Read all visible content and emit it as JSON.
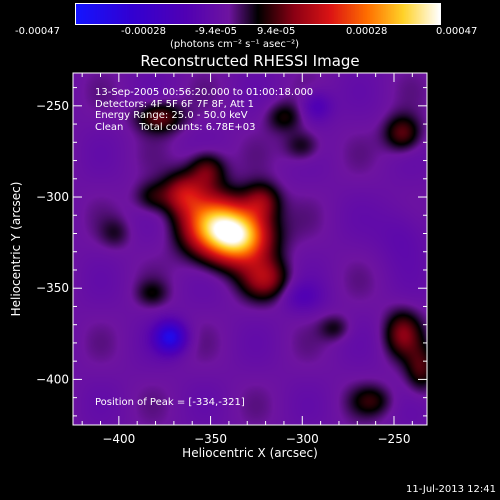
{
  "colorbar": {
    "ticks": [
      "-0.00047",
      "-0.00028",
      "-9.4e-05",
      "9.4e-05",
      "0.00028",
      "0.00047"
    ],
    "unit_label": "(photons cm⁻² s⁻¹ asec⁻²)",
    "range": [
      -0.00047,
      0.00047
    ]
  },
  "annotations": {
    "time_range": "13-Sep-2005 00:56:20.000 to 01:00:18.000",
    "detectors": "Detectors: 4F 5F 6F 7F 8F, Att 1",
    "energy": "Energy Range: 25.0 - 50.0 keV",
    "clean_total": "Clean     Total counts: 6.78E+03",
    "peak": "Position of Peak = [-334,-321]"
  },
  "footer": {
    "timestamp": "11-Jul-2013 12:41"
  },
  "chart_data": {
    "type": "heatmap",
    "title": "Reconstructed RHESSI Image",
    "xlabel": "Heliocentric X (arcsec)",
    "ylabel": "Heliocentric Y (arcsec)",
    "xlim": [
      -425,
      -232
    ],
    "ylim": [
      -425,
      -232
    ],
    "xticks": [
      -400,
      -350,
      -300,
      -250
    ],
    "yticks": [
      -400,
      -350,
      -300,
      -250
    ],
    "xtick_labels": [
      "−400",
      "−350",
      "−300",
      "−250"
    ],
    "ytick_labels": [
      "−400",
      "−350",
      "−300",
      "−250"
    ],
    "peak": [
      -334,
      -321
    ],
    "sources": [
      {
        "x": -334,
        "y": -321,
        "value": 0.00047,
        "sx": 12,
        "sy": 11
      },
      {
        "x": -350,
        "y": -315,
        "value": 0.00032,
        "sx": 12,
        "sy": 12
      },
      {
        "x": -365,
        "y": -298,
        "value": 0.0002,
        "sx": 8,
        "sy": 8
      },
      {
        "x": -352,
        "y": -285,
        "value": 0.00016,
        "sx": 7,
        "sy": 7
      },
      {
        "x": -322,
        "y": -302,
        "value": 0.00016,
        "sx": 7,
        "sy": 7
      },
      {
        "x": -320,
        "y": -345,
        "value": 0.00018,
        "sx": 9,
        "sy": 8
      },
      {
        "x": -382,
        "y": -300,
        "value": 0.0001,
        "sx": 7,
        "sy": 6
      },
      {
        "x": -378,
        "y": -256,
        "value": 0.00016,
        "sx": 9,
        "sy": 6
      },
      {
        "x": -310,
        "y": -256,
        "value": 0.0001,
        "sx": 7,
        "sy": 6
      },
      {
        "x": -300,
        "y": -272,
        "value": 0.0001,
        "sx": 7,
        "sy": 6
      },
      {
        "x": -245,
        "y": -265,
        "value": 0.00016,
        "sx": 7,
        "sy": 7
      },
      {
        "x": -245,
        "y": -375,
        "value": 0.00016,
        "sx": 7,
        "sy": 9
      },
      {
        "x": -262,
        "y": -412,
        "value": 0.0001,
        "sx": 8,
        "sy": 6
      },
      {
        "x": -235,
        "y": -395,
        "value": 0.00013,
        "sx": 6,
        "sy": 9
      },
      {
        "x": -282,
        "y": -372,
        "value": 8e-05,
        "sx": 6,
        "sy": 5
      },
      {
        "x": -382,
        "y": -353,
        "value": 7e-05,
        "sx": 6,
        "sy": 5
      },
      {
        "x": -402,
        "y": -320,
        "value": 6e-05,
        "sx": 6,
        "sy": 6
      },
      {
        "x": -292,
        "y": -250,
        "value": -0.00012,
        "sx": 6,
        "sy": 6
      },
      {
        "x": -372,
        "y": -377,
        "value": -0.0003,
        "sx": 6,
        "sy": 6
      },
      {
        "x": -300,
        "y": -355,
        "value": -8e-05,
        "sx": 8,
        "sy": 6
      },
      {
        "x": -245,
        "y": -320,
        "value": -6e-05,
        "sx": 10,
        "sy": 12
      }
    ],
    "background": -9e-05
  }
}
